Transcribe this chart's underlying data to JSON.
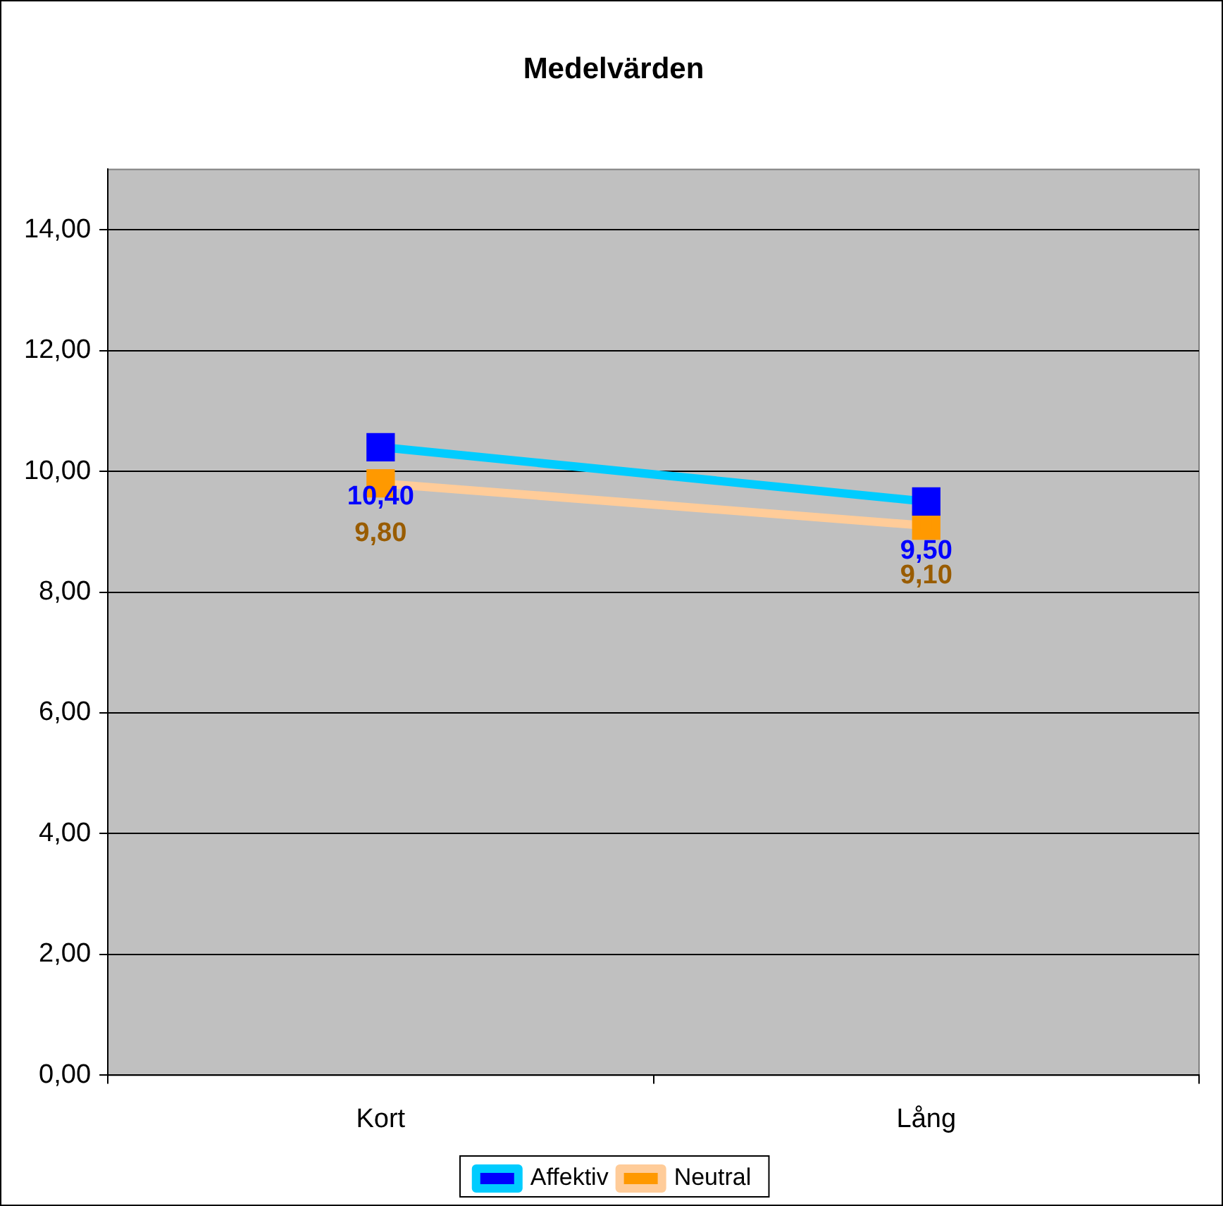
{
  "chart_data": {
    "type": "line",
    "title": "Medelvärden",
    "categories": [
      "Kort",
      "Lång"
    ],
    "series": [
      {
        "name": "Affektiv",
        "color": "#00ccff",
        "colors": [
          "#0000ff",
          "#0000ff"
        ],
        "values": [
          10.4,
          9.5
        ],
        "value_labels": [
          "10,40",
          "9,50"
        ]
      },
      {
        "name": "Neutral",
        "color": "#ffcc99",
        "colors": [
          "#ff9900",
          "#ff9900"
        ],
        "values": [
          9.8,
          9.1
        ],
        "value_labels": [
          "9,80",
          "9,10"
        ]
      }
    ],
    "ylim": [
      0,
      15
    ],
    "yticks": [
      {
        "value": 0,
        "label": "0,00"
      },
      {
        "value": 2,
        "label": "2,00"
      },
      {
        "value": 4,
        "label": "4,00"
      },
      {
        "value": 6,
        "label": "6,00"
      },
      {
        "value": 8,
        "label": "8,00"
      },
      {
        "value": 10,
        "label": "10,00"
      },
      {
        "value": 12,
        "label": "12,00"
      },
      {
        "value": 14,
        "label": "14,00"
      }
    ],
    "grid": "y",
    "legend": "bottom",
    "marker": "square",
    "line_style": "solid"
  }
}
